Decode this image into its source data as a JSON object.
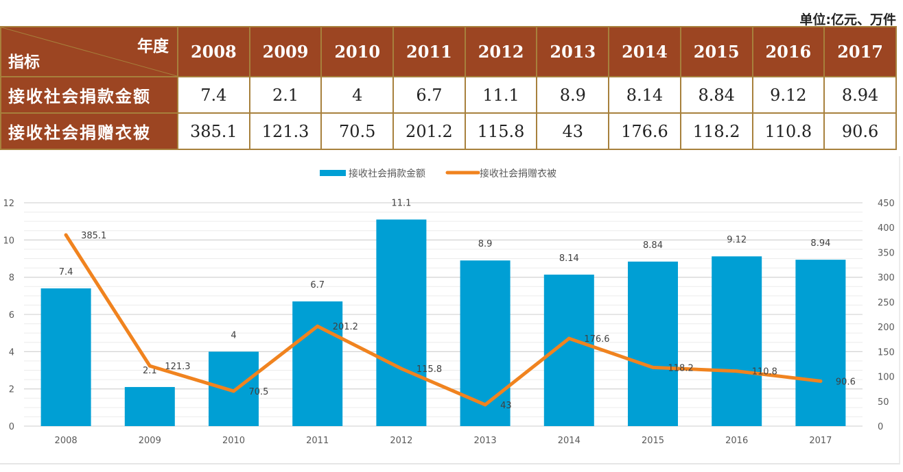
{
  "unit_label": "单位:亿元、万件",
  "table": {
    "corner_top": "年度",
    "corner_bottom": "指标",
    "years": [
      "2008",
      "2009",
      "2010",
      "2011",
      "2012",
      "2013",
      "2014",
      "2015",
      "2016",
      "2017"
    ],
    "rows": [
      {
        "label": "接收社会捐款金额",
        "values": [
          "7.4",
          "2.1",
          "4",
          "6.7",
          "11.1",
          "8.9",
          "8.14",
          "8.84",
          "9.12",
          "8.94"
        ]
      },
      {
        "label": "接收社会捐赠衣被",
        "values": [
          "385.1",
          "121.3",
          "70.5",
          "201.2",
          "115.8",
          "43",
          "176.6",
          "118.2",
          "110.8",
          "90.6"
        ]
      }
    ]
  },
  "colors": {
    "bar": "#009fd4",
    "line": "#f0831f",
    "header_bg": "#9c4522",
    "table_border": "#a7803c"
  },
  "chart_data": {
    "type": "bar+line",
    "title": "",
    "categories": [
      "2008",
      "2009",
      "2010",
      "2011",
      "2012",
      "2013",
      "2014",
      "2015",
      "2016",
      "2017"
    ],
    "series": [
      {
        "name": "接收社会捐款金额",
        "type": "bar",
        "axis": "left",
        "values": [
          7.4,
          2.1,
          4,
          6.7,
          11.1,
          8.9,
          8.14,
          8.84,
          9.12,
          8.94
        ],
        "labels": [
          "7.4",
          "2.1",
          "4",
          "6.7",
          "11.1",
          "8.9",
          "8.14",
          "8.84",
          "9.12",
          "8.94"
        ]
      },
      {
        "name": "接收社会捐赠衣被",
        "type": "line",
        "axis": "right",
        "values": [
          385.1,
          121.3,
          70.5,
          201.2,
          115.8,
          43,
          176.6,
          118.2,
          110.8,
          90.6
        ],
        "labels": [
          "385.1",
          "121.3",
          "70.5",
          "201.2",
          "115.8",
          "43",
          "176.6",
          "118.2",
          "110.8",
          "90.6"
        ]
      }
    ],
    "y_left": {
      "min": 0,
      "max": 12,
      "ticks": [
        0,
        2,
        4,
        6,
        8,
        10,
        12
      ]
    },
    "y_right": {
      "min": 0,
      "max": 450,
      "ticks": [
        0,
        50,
        100,
        150,
        200,
        250,
        300,
        350,
        400,
        450
      ]
    },
    "grid": true,
    "legend": "top-center"
  }
}
